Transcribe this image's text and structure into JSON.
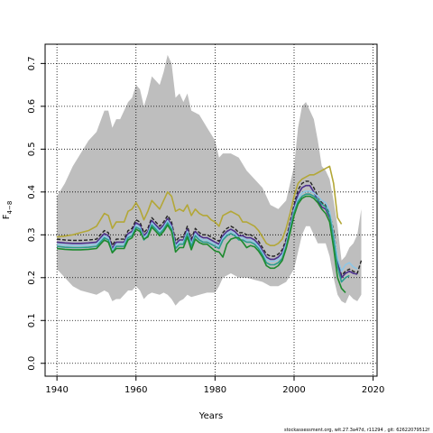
{
  "chart_data": {
    "type": "line",
    "xlabel": "Years",
    "ylabel": "F",
    "ylabel_sub": "4−8",
    "xlim": [
      1937,
      2021
    ],
    "ylim": [
      -0.03,
      0.745
    ],
    "x_ticks": [
      1940,
      1960,
      1980,
      2000,
      2020
    ],
    "x_tick_labels": [
      "1940",
      "1960",
      "1980",
      "2000",
      "2020"
    ],
    "y_ticks": [
      0.0,
      0.1,
      0.2,
      0.3,
      0.4,
      0.5,
      0.6,
      0.7
    ],
    "y_tick_labels": [
      "0.0",
      "0.1",
      "0.2",
      "0.3",
      "0.4",
      "0.5",
      "0.6",
      "0.7"
    ],
    "grid": true,
    "band": {
      "color": "#bebebe",
      "x": [
        1940,
        1942,
        1944,
        1946,
        1948,
        1950,
        1952,
        1953,
        1954,
        1955,
        1956,
        1958,
        1959,
        1960,
        1961,
        1962,
        1963,
        1964,
        1966,
        1967,
        1968,
        1969,
        1970,
        1971,
        1972,
        1973,
        1974,
        1976,
        1978,
        1980,
        1981,
        1982,
        1984,
        1986,
        1988,
        1990,
        1992,
        1994,
        1996,
        1998,
        2000,
        2001,
        2002,
        2003,
        2004,
        2005,
        2006,
        2007,
        2008,
        2009,
        2010,
        2011,
        2012,
        2013,
        2014,
        2015,
        2016,
        2017
      ],
      "upper": [
        0.39,
        0.42,
        0.46,
        0.49,
        0.52,
        0.54,
        0.59,
        0.59,
        0.55,
        0.57,
        0.57,
        0.61,
        0.62,
        0.65,
        0.64,
        0.6,
        0.63,
        0.67,
        0.65,
        0.68,
        0.72,
        0.7,
        0.62,
        0.63,
        0.61,
        0.63,
        0.59,
        0.58,
        0.55,
        0.52,
        0.48,
        0.49,
        0.49,
        0.48,
        0.45,
        0.43,
        0.41,
        0.37,
        0.36,
        0.38,
        0.46,
        0.55,
        0.6,
        0.61,
        0.59,
        0.57,
        0.52,
        0.46,
        0.45,
        0.43,
        0.38,
        0.32,
        0.24,
        0.25,
        0.27,
        0.28,
        0.3,
        0.36
      ],
      "lower": [
        0.22,
        0.2,
        0.18,
        0.17,
        0.165,
        0.16,
        0.17,
        0.165,
        0.145,
        0.15,
        0.15,
        0.17,
        0.17,
        0.18,
        0.17,
        0.15,
        0.16,
        0.165,
        0.16,
        0.165,
        0.16,
        0.15,
        0.135,
        0.145,
        0.15,
        0.16,
        0.155,
        0.16,
        0.165,
        0.165,
        0.18,
        0.2,
        0.21,
        0.2,
        0.2,
        0.195,
        0.19,
        0.18,
        0.18,
        0.19,
        0.22,
        0.26,
        0.3,
        0.32,
        0.32,
        0.3,
        0.28,
        0.28,
        0.28,
        0.25,
        0.2,
        0.16,
        0.145,
        0.14,
        0.16,
        0.15,
        0.145,
        0.16
      ]
    },
    "x": [
      1940,
      1942,
      1944,
      1946,
      1948,
      1950,
      1951,
      1952,
      1953,
      1954,
      1955,
      1956,
      1957,
      1958,
      1959,
      1960,
      1961,
      1962,
      1963,
      1964,
      1965,
      1966,
      1967,
      1968,
      1969,
      1970,
      1971,
      1972,
      1973,
      1974,
      1975,
      1976,
      1977,
      1978,
      1979,
      1980,
      1981,
      1982,
      1983,
      1984,
      1985,
      1986,
      1987,
      1988,
      1989,
      1990,
      1991,
      1992,
      1993,
      1994,
      1995,
      1996,
      1997,
      1998,
      1999,
      2000,
      2001,
      2002,
      2003,
      2004,
      2005,
      2006,
      2007,
      2008,
      2009,
      2010,
      2011,
      2012,
      2013,
      2014,
      2015,
      2016,
      2017
    ],
    "series": [
      {
        "color": "#b3a737",
        "dashed": false,
        "width": 1.6,
        "values": [
          0.295,
          0.297,
          0.3,
          0.305,
          0.31,
          0.32,
          0.335,
          0.35,
          0.345,
          0.315,
          0.33,
          0.33,
          0.33,
          0.355,
          0.36,
          0.375,
          0.36,
          0.335,
          0.355,
          0.38,
          0.37,
          0.36,
          0.38,
          0.4,
          0.39,
          0.355,
          0.36,
          0.355,
          0.37,
          0.345,
          0.36,
          0.35,
          0.345,
          0.345,
          0.335,
          0.33,
          0.32,
          0.345,
          0.35,
          0.355,
          0.35,
          0.345,
          0.33,
          0.33,
          0.325,
          0.32,
          0.31,
          0.295,
          0.28,
          0.275,
          0.275,
          0.28,
          0.29,
          0.315,
          0.35,
          0.39,
          0.42,
          0.43,
          0.435,
          0.44,
          0.44,
          0.445,
          0.45,
          0.455,
          0.46,
          0.42,
          0.34,
          0.325,
          null,
          null,
          null,
          null,
          null
        ]
      },
      {
        "color": "#222222",
        "dashed": true,
        "width": 1.4,
        "values": [
          0.29,
          0.288,
          0.287,
          0.287,
          0.288,
          0.29,
          0.3,
          0.31,
          0.305,
          0.275,
          0.29,
          0.29,
          0.29,
          0.31,
          0.315,
          0.335,
          0.33,
          0.305,
          0.315,
          0.34,
          0.33,
          0.32,
          0.33,
          0.345,
          0.33,
          0.285,
          0.295,
          0.295,
          0.32,
          0.29,
          0.315,
          0.305,
          0.3,
          0.3,
          0.295,
          0.29,
          0.285,
          0.305,
          0.315,
          0.32,
          0.315,
          0.305,
          0.305,
          0.3,
          0.3,
          0.295,
          0.285,
          0.27,
          0.255,
          0.25,
          0.25,
          0.255,
          0.265,
          0.29,
          0.33,
          0.37,
          0.405,
          0.42,
          0.425,
          0.425,
          0.41,
          0.39,
          0.375,
          0.37,
          0.35,
          0.31,
          0.24,
          0.205,
          0.215,
          0.22,
          0.215,
          0.21,
          0.24
        ]
      },
      {
        "color": "#4b2f8c",
        "dashed": false,
        "width": 1.6,
        "values": [
          0.283,
          0.281,
          0.28,
          0.28,
          0.281,
          0.283,
          0.293,
          0.303,
          0.298,
          0.268,
          0.283,
          0.283,
          0.283,
          0.303,
          0.308,
          0.328,
          0.323,
          0.298,
          0.308,
          0.333,
          0.323,
          0.313,
          0.323,
          0.338,
          0.323,
          0.278,
          0.288,
          0.288,
          0.313,
          0.283,
          0.308,
          0.298,
          0.293,
          0.293,
          0.288,
          0.283,
          0.278,
          0.298,
          0.308,
          0.313,
          0.308,
          0.298,
          0.298,
          0.293,
          0.293,
          0.288,
          0.278,
          0.263,
          0.248,
          0.243,
          0.243,
          0.248,
          0.258,
          0.283,
          0.323,
          0.363,
          0.395,
          0.41,
          0.415,
          0.415,
          0.4,
          0.38,
          0.365,
          0.36,
          0.34,
          0.3,
          0.235,
          0.2,
          0.21,
          0.215,
          0.21,
          0.208,
          null
        ]
      },
      {
        "color": "#8ec7e6",
        "dashed": false,
        "width": 1.6,
        "values": [
          0.278,
          0.276,
          0.275,
          0.275,
          0.276,
          0.278,
          0.288,
          0.298,
          0.293,
          0.263,
          0.278,
          0.278,
          0.278,
          0.298,
          0.303,
          0.323,
          0.318,
          0.293,
          0.303,
          0.328,
          0.318,
          0.308,
          0.318,
          0.333,
          0.318,
          0.273,
          0.283,
          0.283,
          0.308,
          0.278,
          0.303,
          0.293,
          0.288,
          0.288,
          0.283,
          0.278,
          0.273,
          0.293,
          0.303,
          0.308,
          0.303,
          0.293,
          0.293,
          0.288,
          0.288,
          0.283,
          0.273,
          0.258,
          0.243,
          0.238,
          0.238,
          0.243,
          0.253,
          0.278,
          0.318,
          0.358,
          0.385,
          0.398,
          0.402,
          0.402,
          0.398,
          0.39,
          0.38,
          0.375,
          0.355,
          0.3,
          0.245,
          0.215,
          0.23,
          0.235,
          0.225,
          0.22,
          null
        ]
      },
      {
        "color": "#2a9d8f",
        "dashed": false,
        "width": 1.6,
        "values": [
          0.273,
          0.271,
          0.27,
          0.27,
          0.271,
          0.273,
          0.283,
          0.293,
          0.288,
          0.258,
          0.273,
          0.273,
          0.273,
          0.293,
          0.298,
          0.318,
          0.313,
          0.288,
          0.298,
          0.323,
          0.313,
          0.303,
          0.313,
          0.328,
          0.313,
          0.268,
          0.278,
          0.278,
          0.303,
          0.273,
          0.298,
          0.288,
          0.283,
          0.283,
          0.278,
          0.273,
          0.268,
          0.288,
          0.298,
          0.303,
          0.298,
          0.288,
          0.288,
          0.283,
          0.283,
          0.278,
          0.268,
          0.253,
          0.235,
          0.23,
          0.23,
          0.235,
          0.245,
          0.272,
          0.312,
          0.352,
          0.378,
          0.39,
          0.395,
          0.395,
          0.39,
          0.382,
          0.372,
          0.365,
          0.345,
          0.29,
          0.225,
          0.19,
          0.2,
          0.205,
          null,
          null,
          null
        ]
      },
      {
        "color": "#1e8a2e",
        "dashed": false,
        "width": 1.6,
        "values": [
          0.268,
          0.266,
          0.265,
          0.265,
          0.266,
          0.268,
          0.278,
          0.288,
          0.283,
          0.258,
          0.268,
          0.268,
          0.268,
          0.288,
          0.293,
          0.313,
          0.308,
          0.29,
          0.295,
          0.318,
          0.308,
          0.298,
          0.308,
          0.323,
          0.308,
          0.26,
          0.27,
          0.27,
          0.295,
          0.265,
          0.29,
          0.282,
          0.278,
          0.278,
          0.27,
          0.262,
          0.26,
          0.248,
          0.278,
          0.29,
          0.293,
          0.293,
          0.283,
          0.27,
          0.275,
          0.272,
          0.262,
          0.248,
          0.228,
          0.222,
          0.222,
          0.228,
          0.24,
          0.268,
          0.305,
          0.345,
          0.372,
          0.385,
          0.39,
          0.39,
          0.385,
          0.375,
          0.36,
          0.35,
          0.33,
          0.27,
          0.2,
          0.175,
          0.165,
          null,
          null,
          null,
          null
        ]
      }
    ],
    "footer": "stockassessment.org, wit.27.3a47d, r11294 , git: 62622079512f"
  }
}
